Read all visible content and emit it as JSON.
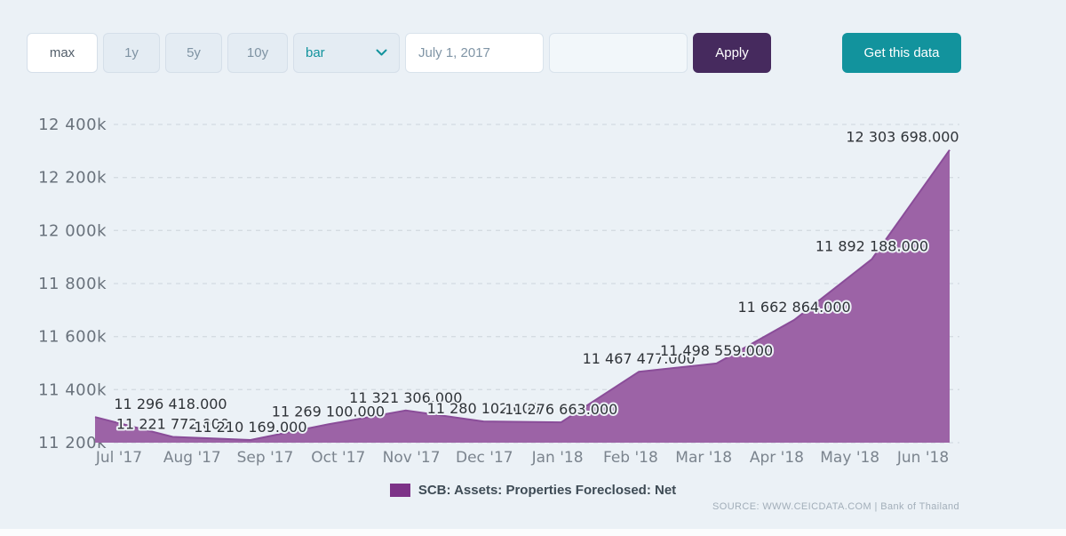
{
  "toolbar": {
    "range_buttons": [
      {
        "label": "max",
        "active": true
      },
      {
        "label": "1y",
        "active": false
      },
      {
        "label": "5y",
        "active": false
      },
      {
        "label": "10y",
        "active": false
      }
    ],
    "chart_type_select": {
      "value": "bar"
    },
    "date_from": {
      "value": "July 1, 2017"
    },
    "date_to": {
      "value": ""
    },
    "apply_label": "Apply",
    "get_data_label": "Get this data"
  },
  "chart_data": {
    "type": "area",
    "title": "",
    "categories": [
      "Jul '17",
      "Aug '17",
      "Sep '17",
      "Oct '17",
      "Nov '17",
      "Dec '17",
      "Jan '18",
      "Feb '18",
      "Mar '18",
      "Apr '18",
      "May '18",
      "Jun '18"
    ],
    "series": [
      {
        "name": "SCB: Assets: Properties Foreclosed: Net",
        "values": [
          11296418,
          11221772,
          11210169,
          11269100,
          11321306,
          11280102,
          11276663,
          11467477,
          11498559,
          11662864,
          11892188,
          12303698
        ],
        "labels": [
          "11 296 418.000",
          "11 221 772.000",
          "11 210 169.000",
          "11 269 100.000",
          "11 321 306.000",
          "11 280 102.000",
          "11 276 663.000",
          "11 467 477.000",
          "11 498 559.000",
          "11 662 864.000",
          "11 892 188.000",
          "12 303 698.000"
        ]
      }
    ],
    "ylim": [
      11200000,
      12400000
    ],
    "yticks": [
      {
        "value": 11200000,
        "label": "11 200k"
      },
      {
        "value": 11400000,
        "label": "11 400k"
      },
      {
        "value": 11600000,
        "label": "11 600k"
      },
      {
        "value": 11800000,
        "label": "11 800k"
      },
      {
        "value": 12000000,
        "label": "12 000k"
      },
      {
        "value": 12200000,
        "label": "12 200k"
      },
      {
        "value": 12400000,
        "label": "12 400k"
      }
    ],
    "grid": "horizontal-dashed",
    "legend_position": "bottom",
    "colors": {
      "area_fill": "#9C63A6",
      "area_stroke": "#8A4D99",
      "legend_swatch": "#7D3388"
    }
  },
  "legend": {
    "label": "SCB: Assets: Properties Foreclosed: Net"
  },
  "source": {
    "text": "SOURCE: WWW.CEICDATA.COM | Bank of Thailand"
  },
  "colors": {
    "background": "#EBF1F6",
    "accent_teal": "#12939D",
    "accent_purple": "#462A5E"
  }
}
